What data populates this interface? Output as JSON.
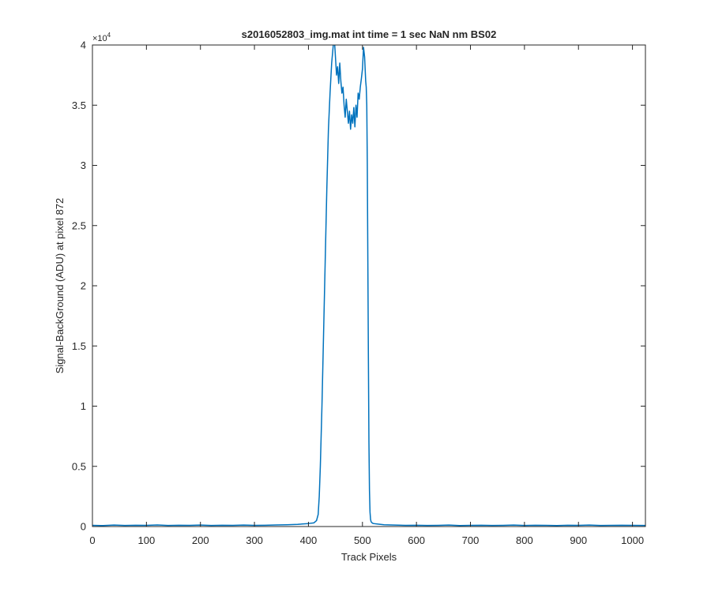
{
  "chart_data": {
    "type": "line",
    "title": "s2016052803_img.mat int time = 1 sec  NaN nm BS02",
    "xlabel": "Track Pixels",
    "ylabel": "Signal-BackGround (ADU) at pixel 872",
    "xlim": [
      0,
      1024
    ],
    "ylim": [
      0,
      40000
    ],
    "x_ticks": [
      0,
      100,
      200,
      300,
      400,
      500,
      600,
      700,
      800,
      900,
      1000
    ],
    "x_tick_labels": [
      "0",
      "100",
      "200",
      "300",
      "400",
      "500",
      "600",
      "700",
      "800",
      "900",
      "1000"
    ],
    "y_ticks": [
      0,
      5000,
      10000,
      15000,
      20000,
      25000,
      30000,
      35000,
      40000
    ],
    "y_tick_labels": [
      "0",
      "0.5",
      "1",
      "1.5",
      "2",
      "2.5",
      "3",
      "3.5",
      "4"
    ],
    "y_exponent_base": "×10",
    "y_exponent_power": "4",
    "grid": false,
    "line_color": "#0072BD",
    "series": [
      {
        "x": [
          0,
          20,
          40,
          60,
          80,
          100,
          120,
          140,
          160,
          180,
          200,
          220,
          240,
          260,
          280,
          300,
          320,
          340,
          360,
          380,
          400,
          410,
          415,
          418,
          420,
          422,
          425,
          428,
          431,
          434,
          437,
          440,
          443,
          446,
          448,
          450,
          452,
          454,
          456,
          458,
          460,
          462,
          464,
          466,
          468,
          470,
          472,
          474,
          476,
          478,
          480,
          482,
          484,
          486,
          488,
          490,
          492,
          494,
          496,
          498,
          500,
          502,
          504,
          506,
          507,
          508,
          509,
          510,
          511,
          512,
          513,
          514,
          515,
          516,
          518,
          520,
          530,
          540,
          560,
          580,
          600,
          620,
          640,
          660,
          680,
          700,
          720,
          740,
          760,
          780,
          800,
          820,
          840,
          860,
          880,
          900,
          920,
          940,
          960,
          980,
          1000,
          1024
        ],
        "y": [
          100,
          80,
          120,
          90,
          110,
          100,
          130,
          90,
          110,
          100,
          120,
          90,
          110,
          100,
          120,
          100,
          110,
          130,
          150,
          180,
          250,
          300,
          500,
          1000,
          2500,
          5000,
          10000,
          16000,
          22000,
          28000,
          33000,
          36000,
          38500,
          40000,
          40500,
          39000,
          37500,
          38200,
          36800,
          38500,
          37000,
          36000,
          36500,
          35000,
          34000,
          35500,
          34500,
          33500,
          34500,
          33000,
          34200,
          33500,
          34800,
          33200,
          35000,
          34000,
          36000,
          35500,
          36500,
          37200,
          38000,
          39800,
          39000,
          37000,
          36500,
          35000,
          30000,
          22000,
          14000,
          7000,
          3000,
          1200,
          600,
          400,
          300,
          250,
          200,
          150,
          120,
          100,
          110,
          90,
          100,
          120,
          80,
          100,
          110,
          90,
          100,
          120,
          90,
          110,
          100,
          80,
          110,
          100,
          120,
          90,
          100,
          110,
          100,
          90
        ]
      }
    ]
  }
}
